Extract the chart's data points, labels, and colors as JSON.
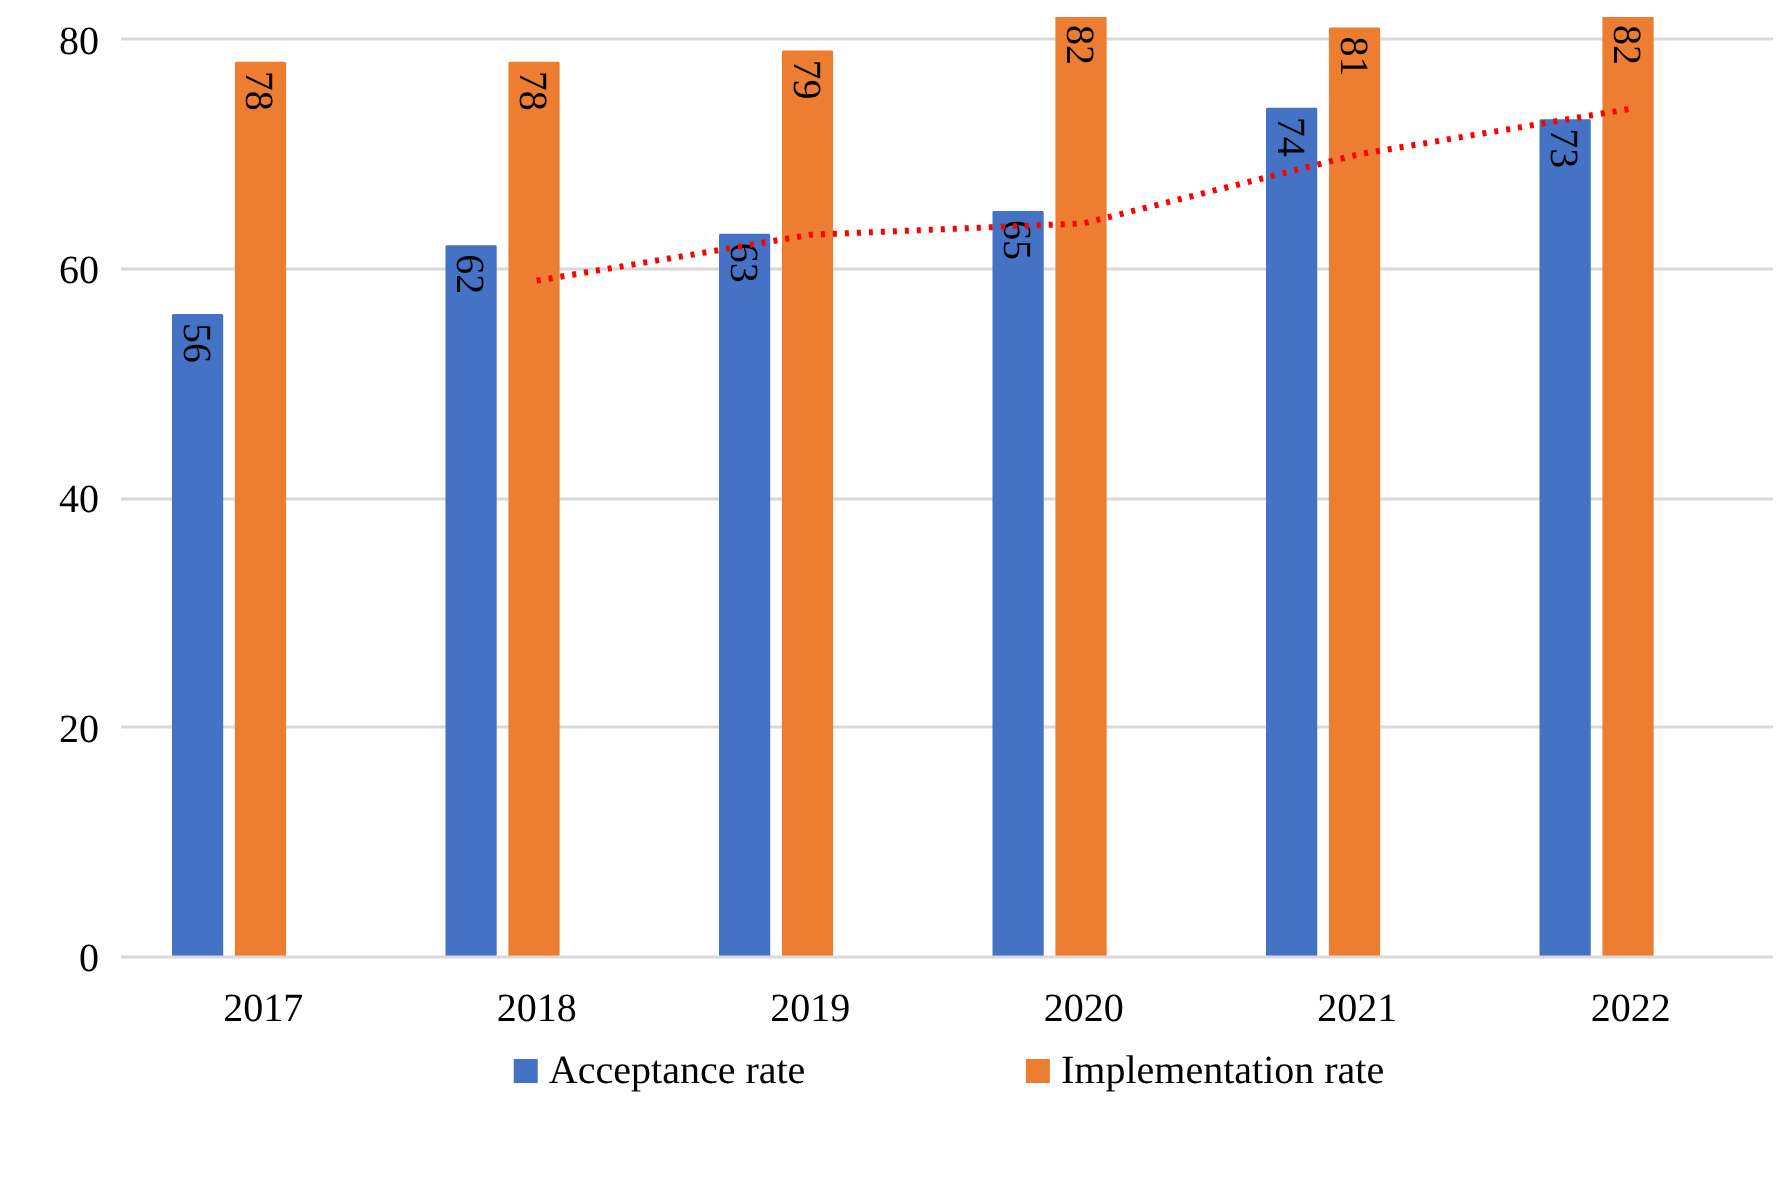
{
  "chart_data": {
    "type": "bar",
    "categories": [
      "2017",
      "2018",
      "2019",
      "2020",
      "2021",
      "2022"
    ],
    "series": [
      {
        "name": "Acceptance rate",
        "color": "#4472c4",
        "values": [
          56,
          62,
          63,
          65,
          74,
          73
        ],
        "value_labels": [
          "56",
          "62",
          "63",
          "65",
          "74",
          "73"
        ]
      },
      {
        "name": "Implementation rate",
        "color": "#ed7d31",
        "values": [
          78,
          78,
          79,
          82,
          81,
          82
        ],
        "value_labels": [
          "78",
          "78",
          "79",
          "82",
          "81",
          "82"
        ]
      },
      {
        "type": "line",
        "color": "#ff0000",
        "line_style": "dotted",
        "values": [
          null,
          59,
          63,
          64,
          70,
          74
        ]
      }
    ],
    "ylim": [
      0,
      82
    ],
    "yticks": [
      0,
      20,
      40,
      60,
      80
    ],
    "grid": "y",
    "legend": "bottom"
  }
}
